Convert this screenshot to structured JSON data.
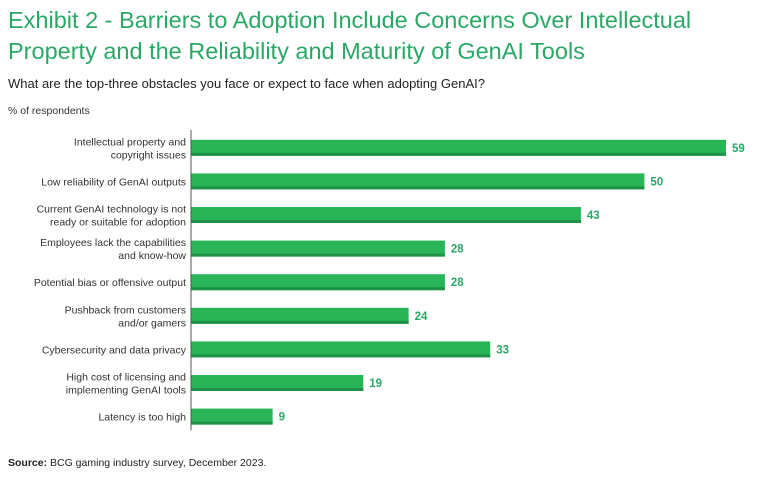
{
  "title": "Exhibit 2 - Barriers to Adoption Include Concerns Over Intellectual Property and the Reliability and Maturity of GenAI Tools",
  "subtitle": "What are the top-three obstacles you face or expect to face when adopting GenAI?",
  "unit_label": "% of respondents",
  "source": {
    "label": "Source:",
    "text": " BCG gaming industry survey, December 2023."
  },
  "colors": {
    "bar": "#29b457",
    "bar_shade": "#1f9246",
    "axis": "#555555",
    "value_text": "#2aa866"
  },
  "chart_data": {
    "type": "bar",
    "orientation": "horizontal",
    "categories": [
      [
        "Intellectual property and",
        "copyright issues"
      ],
      [
        "Low reliability of GenAI outputs"
      ],
      [
        "Current GenAI technology is not",
        "ready or suitable for adoption"
      ],
      [
        "Employees lack the capabilities",
        "and know-how"
      ],
      [
        "Potential bias or offensive output"
      ],
      [
        "Pushback from customers",
        "and/or gamers"
      ],
      [
        "Cybersecurity and data privacy"
      ],
      [
        "High cost of licensing and",
        "implementing GenAI tools"
      ],
      [
        "Latency is too high"
      ]
    ],
    "values": [
      59,
      50,
      43,
      28,
      28,
      24,
      33,
      19,
      9
    ],
    "xlim": [
      0,
      62
    ],
    "title": "What are the top-three obstacles you face or expect to face when adopting GenAI?",
    "xlabel": "% of respondents",
    "ylabel": ""
  }
}
